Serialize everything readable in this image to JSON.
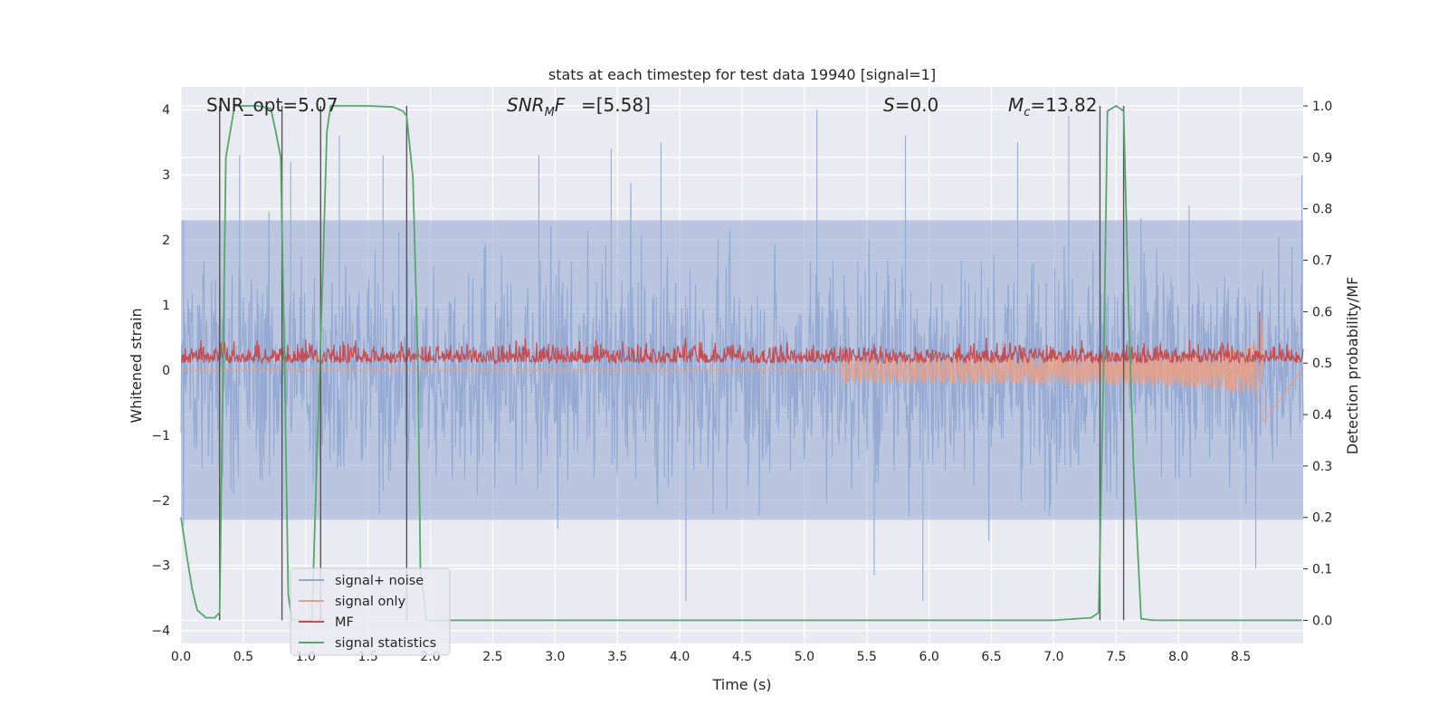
{
  "chart_data": {
    "type": "line",
    "title": "stats at each timestep for test data 19940 [signal=1]",
    "xlabel": "Time (s)",
    "ylabel": "Whitened strain",
    "y2label": "Detection probability/MF",
    "xlim": [
      0,
      9.0
    ],
    "ylim": [
      -4.2,
      4.35
    ],
    "y2lim": [
      -0.045,
      1.037
    ],
    "x_ticks": [
      "0.0",
      "0.5",
      "1.0",
      "1.5",
      "2.0",
      "2.5",
      "3.0",
      "3.5",
      "4.0",
      "4.5",
      "5.0",
      "5.5",
      "6.0",
      "6.5",
      "7.0",
      "7.5",
      "8.0",
      "8.5"
    ],
    "y_ticks": [
      "4",
      "3",
      "2",
      "1",
      "0",
      "−1",
      "−2",
      "−3",
      "−4"
    ],
    "y2_ticks": [
      "1.0",
      "0.9",
      "0.8",
      "0.7",
      "0.6",
      "0.5",
      "0.4",
      "0.3",
      "0.2",
      "0.1",
      "0.0"
    ],
    "grid": true,
    "legend_position": "lower-left",
    "annotations": {
      "snr_opt": "SNR_opt=5.07",
      "snr_mf": "SNR",
      "snr_mf_sub": "M",
      "snr_mf_rest": "F=[5.58]",
      "s_var": "S",
      "s_rest": "=0.0",
      "mc_var": "M",
      "mc_sub": "c",
      "mc_rest": "=13.82"
    },
    "detection_markers": [
      0.31,
      0.81,
      1.12,
      1.81,
      7.37,
      7.56
    ],
    "series": [
      {
        "name": "signal+ noise",
        "color": "#92a8d1",
        "style": "noise band (noise std ≈ 0.85)",
        "envelope_upper": 2.3,
        "envelope_lower": -2.3,
        "peak_values": [
          [
            0.02,
            2.3
          ],
          [
            0.47,
            3.3
          ],
          [
            0.88,
            3.2
          ],
          [
            1.27,
            3.6
          ],
          [
            1.62,
            3.3
          ],
          [
            2.87,
            3.3
          ],
          [
            3.45,
            3.4
          ],
          [
            3.85,
            3.5
          ],
          [
            4.05,
            -3.55
          ],
          [
            5.1,
            4.0
          ],
          [
            5.56,
            -3.15
          ],
          [
            5.81,
            3.6
          ],
          [
            5.95,
            -3.55
          ],
          [
            6.71,
            3.5
          ],
          [
            7.12,
            3.9
          ],
          [
            8.62,
            -3.05
          ],
          [
            8.99,
            3.0
          ]
        ]
      },
      {
        "name": "signal only",
        "color": "#e5a088",
        "style": "chirp",
        "chirp_start_time": 5.3,
        "merger_time": 8.68,
        "amplitude_at_merger": -0.8,
        "amplitude_before_merger": 0.75
      },
      {
        "name": "MF",
        "color": "#c44e52",
        "axis": "right",
        "baseline": 0.5,
        "typical_range": [
          0.5,
          0.55
        ],
        "max": [
          8.65,
          0.6
        ]
      },
      {
        "name": "signal statistics",
        "color": "#55a868",
        "axis": "right",
        "points": [
          [
            0.0,
            0.2
          ],
          [
            0.05,
            0.12
          ],
          [
            0.09,
            0.06
          ],
          [
            0.13,
            0.02
          ],
          [
            0.2,
            0.005
          ],
          [
            0.27,
            0.005
          ],
          [
            0.31,
            0.015
          ],
          [
            0.36,
            0.9
          ],
          [
            0.43,
            1.0
          ],
          [
            0.52,
            1.0
          ],
          [
            0.62,
            1.0
          ],
          [
            0.72,
            0.995
          ],
          [
            0.76,
            0.95
          ],
          [
            0.8,
            0.9
          ],
          [
            0.83,
            0.5
          ],
          [
            0.86,
            0.05
          ],
          [
            0.89,
            0.0
          ],
          [
            0.95,
            0.0
          ],
          [
            1.0,
            0.0
          ],
          [
            1.05,
            0.0
          ],
          [
            1.1,
            0.4
          ],
          [
            1.14,
            0.7
          ],
          [
            1.17,
            0.95
          ],
          [
            1.2,
            1.0
          ],
          [
            1.3,
            1.0
          ],
          [
            1.5,
            1.0
          ],
          [
            1.7,
            0.998
          ],
          [
            1.78,
            0.99
          ],
          [
            1.81,
            0.98
          ],
          [
            1.86,
            0.86
          ],
          [
            1.9,
            0.5
          ],
          [
            1.92,
            0.1
          ],
          [
            1.97,
            0.0
          ],
          [
            2.1,
            0.0
          ],
          [
            3.0,
            0.0
          ],
          [
            4.0,
            0.0
          ],
          [
            5.0,
            0.0
          ],
          [
            6.0,
            0.0
          ],
          [
            7.0,
            0.0
          ],
          [
            7.3,
            0.005
          ],
          [
            7.36,
            0.015
          ],
          [
            7.4,
            0.5
          ],
          [
            7.43,
            0.99
          ],
          [
            7.5,
            1.0
          ],
          [
            7.56,
            0.99
          ],
          [
            7.6,
            0.6
          ],
          [
            7.64,
            0.3
          ],
          [
            7.7,
            0.003
          ],
          [
            7.8,
            0.0
          ],
          [
            8.5,
            0.0
          ],
          [
            8.99,
            0.0
          ]
        ]
      }
    ]
  }
}
